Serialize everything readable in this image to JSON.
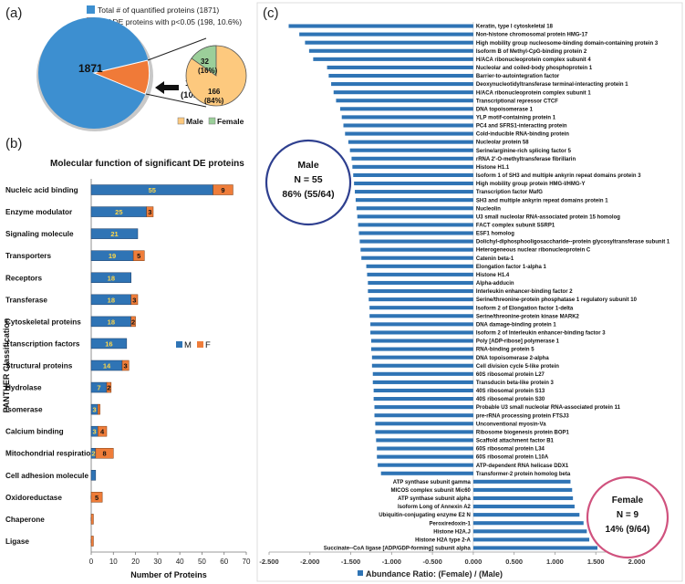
{
  "panel_a": {
    "label": "(a)",
    "legend": [
      {
        "text": "Total # of quantified proteins (1871)",
        "color": "#3d8fd0"
      },
      {
        "text": "# of DE proteins with p<0.05 (198, 10.6%)",
        "color": "#f07a38"
      }
    ],
    "big_value": "1871",
    "de_line1": "198",
    "de_line2": "(10.6%)",
    "female_line1": "32",
    "female_line2": "(16%)",
    "male_line1": "166",
    "male_line2": "(84%)",
    "sub_legend": [
      {
        "text": "Male",
        "color": "#fdc97e"
      },
      {
        "text": "Female",
        "color": "#9bcf9a"
      }
    ]
  },
  "panel_b": {
    "label": "(b)"
  },
  "panel_c": {
    "label": "(c)",
    "male_box": {
      "line1": "Male",
      "line2": "N = 55",
      "line3": "86% (55/64)"
    },
    "female_box": {
      "line1": "Female",
      "line2": "N = 9",
      "line3": "14% (9/64)"
    }
  },
  "colors": {
    "blue": "#2f74b5",
    "orange": "#ef7d3a",
    "pie_blue": "#3d8fd0",
    "male_circle": "#2e3f8f",
    "female_circle": "#d0527e"
  },
  "chart_data": [
    {
      "type": "pie",
      "categories": [
        "Total # of quantified proteins (1871)",
        "# of DE proteins with p<0.05 (198, 10.6%)"
      ],
      "values": [
        1871,
        198
      ]
    },
    {
      "type": "pie",
      "categories": [
        "Male",
        "Female"
      ],
      "values": [
        166,
        32
      ]
    },
    {
      "type": "bar",
      "orientation": "horizontal",
      "stacked": true,
      "title": "Molecular function of significant DE proteins",
      "xlabel": "Number of Proteins",
      "ylabel": "PANTHER Classification",
      "xlim": [
        0,
        70
      ],
      "xticks": [
        "0",
        "10",
        "20",
        "30",
        "40",
        "50",
        "60",
        "70"
      ],
      "legend": "right",
      "categories": [
        "Nucleic acid binding",
        "Enzyme modulator",
        "Signaling molecule",
        "Transporters",
        "Receptors",
        "Transferase",
        "Cytoskeletal proteins",
        "Ttanscription factors",
        "Structural proteins",
        "Hydrolase",
        "Isomerase",
        "Calcium binding",
        "Mitochondrial respiration",
        "Cell adhesion molecule",
        "Oxidoreductase",
        "Chaperone",
        "Ligase"
      ],
      "series": [
        {
          "name": "M",
          "values": [
            55,
            25,
            21,
            19,
            18,
            18,
            18,
            16,
            14,
            7,
            3,
            3,
            2,
            2,
            0,
            0,
            0
          ]
        },
        {
          "name": "F",
          "values": [
            9,
            3,
            0,
            5,
            0,
            3,
            2,
            0,
            3,
            2,
            1,
            4,
            8,
            0,
            5,
            1,
            1
          ]
        }
      ],
      "data_labels": {
        "M": [
          "55",
          "25",
          "21",
          "19",
          "18",
          "18",
          "18",
          "16",
          "14",
          "7",
          "3",
          "3",
          "2",
          "",
          "",
          "",
          ""
        ],
        "F": [
          "9",
          "3",
          "",
          "5",
          "",
          "3",
          "2",
          "",
          "3",
          "2",
          "",
          "4",
          "8",
          "",
          "5",
          "",
          ""
        ]
      }
    },
    {
      "type": "bar",
      "orientation": "horizontal",
      "xlabel": "Abundance Ratio: (Female) / (Male)",
      "xlim": [
        -2.5,
        2.0
      ],
      "xticks": [
        "-2.500",
        "-2.000",
        "-1.500",
        "-1.000",
        "-0.500",
        "0.000",
        "0.500",
        "1.000",
        "1.500",
        "2.000"
      ],
      "legend": "bottom",
      "categories": [
        "Keratin, type I cytoskeletal 18",
        "Non-histone chromosomal protein HMG-17",
        "High mobility group nucleosome-binding domain-containing protein 3",
        "Isoform B of Methyl-CpG-binding protein 2",
        "H/ACA ribonucleoprotein complex subunit 4",
        "Nucleolar and coiled-body phosphoprotein 1",
        "Barrier-to-autointegration factor",
        "Deoxynucleotidyltransferase terminal-interacting protein 1",
        "H/ACA ribonucleoprotein complex subunit 1",
        "Transcriptional repressor CTCF",
        "DNA topoisomerase 1",
        "YLP motif-containing protein 1",
        "PC4 and SFRS1-interacting protein",
        "Cold-inducible RNA-binding protein",
        "Nucleolar protein 58",
        "Serine/arginine-rich splicing factor 5",
        "rRNA 2'-O-methyltransferase fibrillarin",
        "Histone H1.1",
        "Isoform 1 of SH3 and multiple ankyrin repeat domains protein 3",
        "High mobility group protein HMG-I/HMG-Y",
        "Transcription factor MafG",
        "SH3 and multiple ankyrin repeat domains protein 1",
        "Nucleolin",
        "U3 small nucleolar RNA-associated protein 15 homolog",
        "FACT complex subunit SSRP1",
        "ESF1 homolog",
        "Dolichyl-diphosphooligosaccharide--protein glycosyltransferase subunit 1",
        "Heterogeneous nuclear ribonucleoprotein C",
        "Catenin beta-1",
        "Elongation factor 1-alpha 1",
        "Histone H1.4",
        "Alpha-adducin",
        "Interleukin enhancer-binding factor 2",
        "Serine/threonine-protein phosphatase 1 regulatory subunit 10",
        "Isoform 2 of Elongation factor 1-delta",
        "Serine/threonine-protein kinase MARK2",
        "DNA damage-binding protein 1",
        "Isoform 2 of Interleukin enhancer-binding factor 3",
        "Poly [ADP-ribose] polymerase 1",
        "RNA-binding protein 5",
        "DNA topoisomerase 2-alpha",
        "Cell division cycle 5-like protein",
        "60S ribosomal protein L27",
        "Transducin beta-like protein 3",
        "40S ribosomal protein S13",
        "40S ribosomal protein S30",
        "Probable U3 small nucleolar RNA-associated protein 11",
        "pre-rRNA processing protein FTSJ3",
        "Unconventional myosin-Va",
        "Ribosome biogenesis protein BOP1",
        "Scaffold attachment factor B1",
        "60S ribosomal protein L34",
        "60S ribosomal protein L10A",
        "ATP-dependent RNA helicase DDX1",
        "Transformer-2 protein homolog beta",
        "ATP synthase subunit gamma",
        "MICOS complex subunit Mic60",
        "ATP synthase subunit alpha",
        "Isoform Long of Annexin A2",
        "Ubiquitin-conjugating enzyme E2 N",
        "Peroxiredoxin-1",
        "Histone H2A.J",
        "Histone H2A type 2-A",
        "Succinate--CoA ligase [ADP/GDP-forming] subunit alpha"
      ],
      "series": [
        {
          "name": "Abundance Ratio: (Female) / (Male)",
          "values": [
            -2.26,
            -2.13,
            -2.06,
            -2.01,
            -1.96,
            -1.79,
            -1.77,
            -1.74,
            -1.71,
            -1.68,
            -1.63,
            -1.61,
            -1.59,
            -1.57,
            -1.53,
            -1.51,
            -1.49,
            -1.48,
            -1.47,
            -1.46,
            -1.45,
            -1.44,
            -1.43,
            -1.42,
            -1.41,
            -1.4,
            -1.39,
            -1.38,
            -1.37,
            -1.31,
            -1.3,
            -1.29,
            -1.29,
            -1.28,
            -1.27,
            -1.27,
            -1.26,
            -1.26,
            -1.25,
            -1.25,
            -1.24,
            -1.24,
            -1.23,
            -1.23,
            -1.22,
            -1.22,
            -1.21,
            -1.21,
            -1.2,
            -1.2,
            -1.19,
            -1.18,
            -1.18,
            -1.17,
            -1.13,
            1.19,
            1.21,
            1.22,
            1.24,
            1.3,
            1.35,
            1.39,
            1.42,
            1.52
          ]
        }
      ]
    }
  ]
}
